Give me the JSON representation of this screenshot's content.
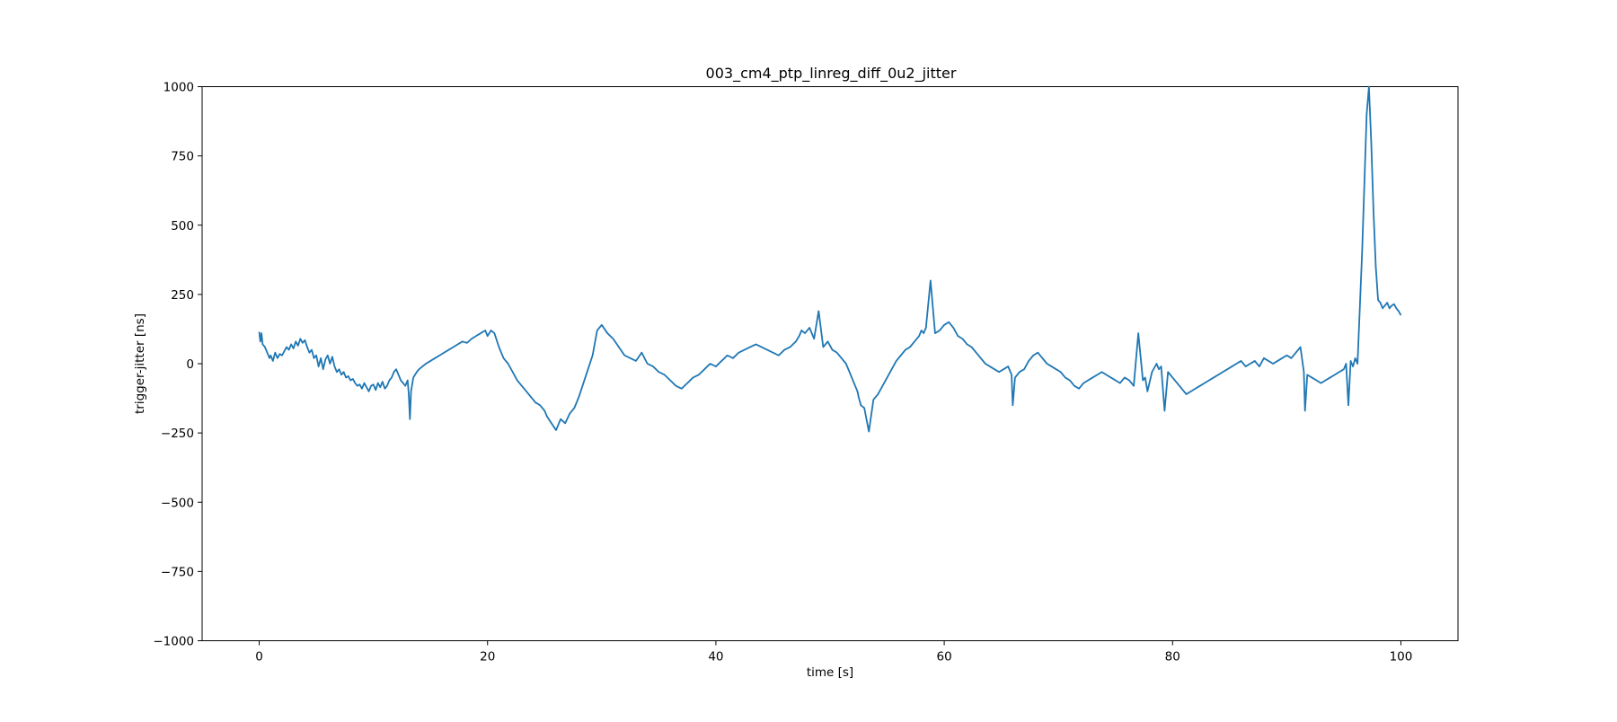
{
  "chart_data": {
    "type": "line",
    "title": "003_cm4_ptp_linreg_diff_0u2_jitter",
    "xlabel": "time [s]",
    "ylabel": "trigger-jitter [ns]",
    "xlim": [
      -5,
      105
    ],
    "ylim": [
      -1000,
      1000
    ],
    "xticks": [
      0,
      20,
      40,
      60,
      80,
      100
    ],
    "yticks": [
      -1000,
      -750,
      -500,
      -250,
      0,
      250,
      500,
      750,
      1000
    ],
    "ytick_labels": [
      "−1000",
      "−750",
      "−500",
      "−250",
      "0",
      "250",
      "500",
      "750",
      "1000"
    ],
    "grid": false,
    "line_color": "#1f77b4",
    "series": [
      {
        "x": [
          0.0,
          0.1,
          0.2,
          0.3,
          0.5,
          0.7,
          0.9,
          1.0,
          1.2,
          1.4,
          1.6,
          1.8,
          2.0,
          2.2,
          2.4,
          2.6,
          2.8,
          3.0,
          3.2,
          3.4,
          3.6,
          3.8,
          4.0,
          4.2,
          4.4,
          4.6,
          4.8,
          5.0,
          5.2,
          5.4,
          5.6,
          5.8,
          6.0,
          6.2,
          6.4,
          6.6,
          6.8,
          7.0,
          7.2,
          7.4,
          7.6,
          7.8,
          8.0,
          8.2,
          8.4,
          8.6,
          8.8,
          9.0,
          9.2,
          9.4,
          9.6,
          9.8,
          10.0,
          10.2,
          10.4,
          10.6,
          10.8,
          11.0,
          11.2,
          11.4,
          11.6,
          11.8,
          12.0,
          12.2,
          12.4,
          12.6,
          12.8,
          13.0,
          13.1,
          13.2,
          13.3,
          13.5,
          13.8,
          14.0,
          14.3,
          14.6,
          15.0,
          15.4,
          15.8,
          16.2,
          16.6,
          17.0,
          17.4,
          17.8,
          18.2,
          18.6,
          19.0,
          19.4,
          19.8,
          20.0,
          20.3,
          20.6,
          21.0,
          21.4,
          21.8,
          22.2,
          22.6,
          23.0,
          23.4,
          23.8,
          24.2,
          24.6,
          25.0,
          25.2,
          25.6,
          26.0,
          26.4,
          26.8,
          27.2,
          27.6,
          28.0,
          28.4,
          28.8,
          29.2,
          29.6,
          30.0,
          30.5,
          31.0,
          31.5,
          32.0,
          32.5,
          33.0,
          33.5,
          34.0,
          34.5,
          35.0,
          35.5,
          36.0,
          36.5,
          37.0,
          37.5,
          38.0,
          38.5,
          39.0,
          39.5,
          40.0,
          40.5,
          41.0,
          41.5,
          42.0,
          42.5,
          43.0,
          43.5,
          44.0,
          44.5,
          45.0,
          45.5,
          46.0,
          46.5,
          47.0,
          47.3,
          47.5,
          47.8,
          48.2,
          48.6,
          49.0,
          49.4,
          49.8,
          50.2,
          50.6,
          51.0,
          51.4,
          51.8,
          52.2,
          52.4,
          52.5,
          52.7,
          53.0,
          53.4,
          53.8,
          54.2,
          54.6,
          55.0,
          55.4,
          55.8,
          56.2,
          56.6,
          57.0,
          57.4,
          57.8,
          58.0,
          58.2,
          58.4,
          58.8,
          59.2,
          59.6,
          60.0,
          60.4,
          60.8,
          61.2,
          61.6,
          62.0,
          62.4,
          62.8,
          63.2,
          63.6,
          64.0,
          64.4,
          64.8,
          65.2,
          65.6,
          65.8,
          65.9,
          66.0,
          66.2,
          66.6,
          67.0,
          67.4,
          67.8,
          68.2,
          68.6,
          69.0,
          69.4,
          69.8,
          70.2,
          70.6,
          71.0,
          71.4,
          71.8,
          72.2,
          72.6,
          73.0,
          73.4,
          73.8,
          74.2,
          74.6,
          75.0,
          75.4,
          75.8,
          76.2,
          76.4,
          76.6,
          77.0,
          77.4,
          77.6,
          77.8,
          78.2,
          78.6,
          78.8,
          79.0,
          79.3,
          79.6,
          80.0,
          80.4,
          80.8,
          81.2,
          81.6,
          82.0,
          82.4,
          82.8,
          83.2,
          83.6,
          84.0,
          84.4,
          84.8,
          85.2,
          85.6,
          86.0,
          86.4,
          86.8,
          87.2,
          87.6,
          88.0,
          88.4,
          88.8,
          89.2,
          89.6,
          90.0,
          90.4,
          90.8,
          91.2,
          91.5,
          91.6,
          91.8,
          92.2,
          92.6,
          93.0,
          93.4,
          93.8,
          94.2,
          94.6,
          95.0,
          95.2,
          95.4,
          95.6,
          95.8,
          96.0,
          96.2,
          96.4,
          96.6,
          96.8,
          97.0,
          97.2,
          97.4,
          97.6,
          97.8,
          98.0,
          98.2,
          98.4,
          98.6,
          98.8,
          99.0,
          99.2,
          99.4,
          99.6,
          99.8,
          100.0
        ],
        "y": [
          115,
          80,
          110,
          70,
          60,
          40,
          20,
          30,
          10,
          40,
          20,
          35,
          30,
          45,
          60,
          50,
          70,
          55,
          80,
          65,
          90,
          75,
          85,
          60,
          40,
          50,
          20,
          30,
          -10,
          20,
          -20,
          15,
          30,
          0,
          25,
          -10,
          -30,
          -20,
          -40,
          -30,
          -50,
          -45,
          -60,
          -55,
          -70,
          -80,
          -75,
          -90,
          -70,
          -85,
          -100,
          -80,
          -75,
          -95,
          -70,
          -85,
          -65,
          -90,
          -80,
          -60,
          -50,
          -30,
          -20,
          -40,
          -60,
          -70,
          -80,
          -60,
          -110,
          -200,
          -100,
          -50,
          -30,
          -20,
          -10,
          0,
          10,
          20,
          30,
          40,
          50,
          60,
          70,
          80,
          75,
          90,
          100,
          110,
          120,
          100,
          120,
          110,
          60,
          20,
          0,
          -30,
          -60,
          -80,
          -100,
          -120,
          -140,
          -150,
          -170,
          -190,
          -215,
          -240,
          -200,
          -215,
          -180,
          -160,
          -120,
          -70,
          -20,
          30,
          120,
          140,
          110,
          90,
          60,
          30,
          20,
          10,
          40,
          0,
          -10,
          -30,
          -40,
          -60,
          -80,
          -90,
          -70,
          -50,
          -40,
          -20,
          0,
          -10,
          10,
          30,
          20,
          40,
          50,
          60,
          70,
          60,
          50,
          40,
          30,
          50,
          60,
          80,
          100,
          120,
          110,
          130,
          90,
          190,
          60,
          80,
          50,
          40,
          20,
          0,
          -40,
          -80,
          -100,
          -120,
          -150,
          -160,
          -245,
          -130,
          -110,
          -80,
          -50,
          -20,
          10,
          30,
          50,
          60,
          80,
          100,
          120,
          110,
          130,
          300,
          110,
          120,
          140,
          150,
          130,
          100,
          90,
          70,
          60,
          40,
          20,
          0,
          -10,
          -20,
          -30,
          -20,
          -10,
          -30,
          -40,
          -150,
          -50,
          -30,
          -20,
          10,
          30,
          40,
          20,
          0,
          -10,
          -20,
          -30,
          -50,
          -60,
          -80,
          -90,
          -70,
          -60,
          -50,
          -40,
          -30,
          -40,
          -50,
          -60,
          -70,
          -50,
          -60,
          -70,
          -80,
          110,
          -60,
          -50,
          -100,
          -30,
          0,
          -20,
          -10,
          -170,
          -30,
          -50,
          -70,
          -90,
          -110,
          -100,
          -90,
          -80,
          -70,
          -60,
          -50,
          -40,
          -30,
          -20,
          -10,
          0,
          10,
          -10,
          0,
          10,
          -10,
          20,
          10,
          0,
          10,
          20,
          30,
          20,
          40,
          60,
          -30,
          -170,
          -40,
          -50,
          -60,
          -70,
          -60,
          -50,
          -40,
          -30,
          -20,
          0,
          -150,
          10,
          -10,
          20,
          0,
          200,
          400,
          650,
          900,
          1000,
          800,
          550,
          350,
          230,
          220,
          200,
          210,
          220,
          200,
          210,
          215,
          200,
          190,
          175
        ]
      }
    ]
  }
}
